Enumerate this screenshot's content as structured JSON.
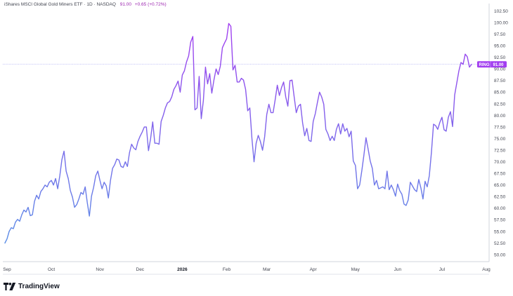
{
  "header": {
    "symbol_line": "iShares MSCI Global Gold Miners ETF · 1D · NASDAQ",
    "price": "91.00",
    "change": "+0.65 (+0.72%)"
  },
  "brand": {
    "name": "TradingView"
  },
  "colors": {
    "line_start": "#5b8ee6",
    "line_end": "#a23ff0",
    "badge": "#a23ff0",
    "priceline": "#9c9cf0"
  },
  "chart_data": {
    "type": "line",
    "ylim": [
      48.5,
      103.5
    ],
    "y_ticks": [
      "102.50",
      "100.00",
      "97.50",
      "95.00",
      "92.50",
      "90.00",
      "87.50",
      "85.00",
      "82.50",
      "80.00",
      "77.50",
      "75.00",
      "72.50",
      "70.00",
      "67.50",
      "65.00",
      "62.50",
      "60.00",
      "57.50",
      "55.00",
      "52.50",
      "50.00"
    ],
    "x_ticks": [
      {
        "label": "Sep",
        "i": 1,
        "bold": false
      },
      {
        "label": "Oct",
        "i": 22,
        "bold": false
      },
      {
        "label": "Nov",
        "i": 45,
        "bold": false
      },
      {
        "label": "Dec",
        "i": 64,
        "bold": false
      },
      {
        "label": "2026",
        "i": 84,
        "bold": true
      },
      {
        "label": "Feb",
        "i": 105,
        "bold": false
      },
      {
        "label": "Mar",
        "i": 124,
        "bold": false
      },
      {
        "label": "Apr",
        "i": 146,
        "bold": false
      },
      {
        "label": "May",
        "i": 166,
        "bold": false
      },
      {
        "label": "Jun",
        "i": 186,
        "bold": false
      },
      {
        "label": "Jul",
        "i": 207,
        "bold": false
      },
      {
        "label": "Aug",
        "i": 228,
        "bold": false
      },
      {
        "label": "Sep",
        "i": 248,
        "bold": false
      }
    ],
    "last_price_label": "RING",
    "last_price_value": "91.00",
    "last_price": 91.0,
    "values": [
      52.5,
      53.4,
      55.0,
      55.8,
      55.6,
      57.0,
      57.6,
      57.2,
      58.6,
      59.6,
      59.2,
      60.2,
      58.4,
      58.6,
      61.5,
      62.8,
      62.0,
      63.6,
      64.2,
      65.0,
      64.6,
      65.6,
      66.0,
      65.0,
      66.4,
      64.2,
      67.0,
      70.5,
      72.3,
      68.0,
      66.4,
      63.8,
      62.4,
      60.2,
      60.8,
      62.0,
      63.4,
      63.0,
      64.6,
      61.2,
      58.3,
      62.6,
      64.5,
      67.0,
      68.0,
      66.0,
      64.2,
      65.6,
      64.8,
      62.2,
      66.0,
      68.6,
      69.4,
      70.6,
      70.4,
      69.0,
      68.8,
      70.0,
      69.0,
      72.0,
      73.8,
      73.0,
      72.6,
      74.4,
      75.5,
      76.4,
      77.5,
      77.5,
      72.4,
      75.0,
      78.6,
      74.0,
      74.0,
      73.8,
      78.7,
      80.0,
      81.6,
      82.7,
      83.0,
      84.0,
      85.6,
      86.4,
      87.4,
      85.0,
      88.7,
      89.6,
      91.5,
      92.8,
      95.8,
      97.0,
      81.2,
      81.6,
      88.4,
      79.3,
      83.2,
      90.4,
      86.8,
      89.0,
      84.8,
      87.6,
      90.0,
      88.8,
      90.6,
      94.6,
      95.6,
      96.5,
      99.8,
      99.2,
      89.8,
      90.8,
      87.2,
      87.2,
      88.0,
      87.6,
      85.6,
      81.0,
      81.6,
      75.0,
      70.0,
      74.0,
      75.7,
      74.4,
      72.5,
      75.4,
      80.2,
      82.4,
      80.6,
      80.6,
      83.4,
      86.5,
      84.3,
      86.0,
      87.2,
      84.0,
      82.0,
      87.5,
      87.6,
      84.0,
      80.6,
      82.0,
      82.4,
      78.4,
      75.6,
      77.2,
      74.6,
      74.4,
      78.7,
      80.4,
      82.8,
      85.0,
      84.0,
      82.4,
      77.0,
      76.0,
      74.6,
      75.5,
      74.6,
      77.0,
      78.2,
      76.0,
      78.2,
      76.6,
      77.2,
      75.4,
      76.6,
      70.2,
      69.2,
      64.2,
      65.0,
      68.0,
      71.4,
      75.2,
      72.8,
      70.2,
      68.6,
      65.0,
      66.0,
      64.2,
      64.4,
      64.6,
      64.2,
      68.0,
      64.0,
      65.0,
      64.0,
      62.6,
      65.2,
      63.8,
      63.0,
      60.9,
      60.6,
      61.8,
      65.6,
      64.8,
      64.0,
      63.6,
      66.2,
      64.4,
      62.0,
      65.8,
      64.6,
      67.0,
      72.0,
      78.1,
      77.8,
      77.0,
      78.5,
      79.6,
      76.9,
      76.6,
      79.6,
      80.8,
      77.6,
      84.4,
      87.0,
      89.6,
      91.4,
      91.0,
      93.2,
      92.6,
      90.4,
      91.0
    ]
  }
}
